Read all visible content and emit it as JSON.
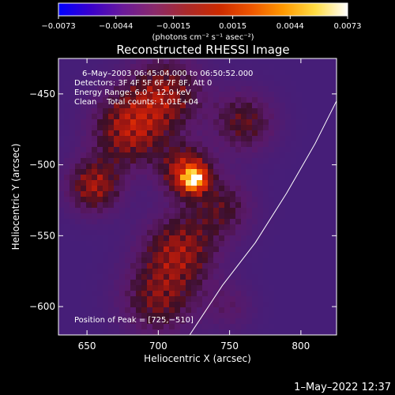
{
  "chart_data": {
    "type": "heatmap",
    "title": "Reconstructed RHESSI Image",
    "xlabel": "Heliocentric X (arcsec)",
    "ylabel": "Heliocentric Y (arcsec)",
    "xlim": [
      630,
      825
    ],
    "ylim": [
      -620,
      -425
    ],
    "xticks": [
      650,
      700,
      750,
      800
    ],
    "yticks": [
      -450,
      -500,
      -550,
      -600
    ],
    "xtick_labels": [
      "650",
      "700",
      "750",
      "800"
    ],
    "ytick_labels": [
      "−450",
      "−500",
      "−550",
      "−600"
    ],
    "colorbar": {
      "range": [
        -0.0073,
        0.0073
      ],
      "tick_values": [
        -0.0073,
        -0.0044,
        -0.0015,
        0.0015,
        0.0044,
        0.0073
      ],
      "tick_labels": [
        "−0.0073",
        "−0.0044",
        "−0.0015",
        "0.0015",
        "0.0044",
        "0.0073"
      ],
      "unit_label": "(photons cm⁻² s⁻¹ asec⁻²)",
      "colors": [
        "#0000ff",
        "#3a00cc",
        "#6a1a9a",
        "#8a2a6a",
        "#aa2a2a",
        "#cc2a00",
        "#ee5500",
        "#ff9900",
        "#ffdd44",
        "#ffffff"
      ]
    },
    "annotations": {
      "time_range": "6–May–2003 06:45:04.000 to 06:50:52.000",
      "detectors": "Detectors: 3F 4F 5F 6F 7F 8F, Att 0",
      "energy": "Energy Range: 6.0 – 12.0 keV",
      "clean": "Clean    Total counts: 1.01E+04",
      "peak": "Position of Peak = [725,−510]"
    },
    "peak": {
      "x": 725,
      "y": -510
    },
    "limb_curve": [
      [
        722,
        -620
      ],
      [
        745,
        -585
      ],
      [
        768,
        -555
      ],
      [
        790,
        -520
      ],
      [
        810,
        -485
      ],
      [
        825,
        -455
      ]
    ],
    "emission_regions": [
      {
        "x": 725,
        "y": -510,
        "sigma": 5,
        "amp": 1.0
      },
      {
        "x": 720,
        "y": -505,
        "sigma": 12,
        "amp": 0.45
      },
      {
        "x": 680,
        "y": -475,
        "sigma": 18,
        "amp": 0.38
      },
      {
        "x": 655,
        "y": -515,
        "sigma": 13,
        "amp": 0.36
      },
      {
        "x": 705,
        "y": -450,
        "sigma": 18,
        "amp": 0.32
      },
      {
        "x": 715,
        "y": -560,
        "sigma": 18,
        "amp": 0.34
      },
      {
        "x": 700,
        "y": -595,
        "sigma": 18,
        "amp": 0.28
      },
      {
        "x": 760,
        "y": -470,
        "sigma": 15,
        "amp": 0.26
      },
      {
        "x": 745,
        "y": -530,
        "sigma": 15,
        "amp": 0.22
      },
      {
        "x": 750,
        "y": -600,
        "sigma": 12,
        "amp": 0.12
      }
    ]
  },
  "timestamp": "1–May–2022 12:37",
  "colors": {
    "background": "#000000",
    "foreground": "#ffffff",
    "plot_base": "#4a1e78"
  }
}
